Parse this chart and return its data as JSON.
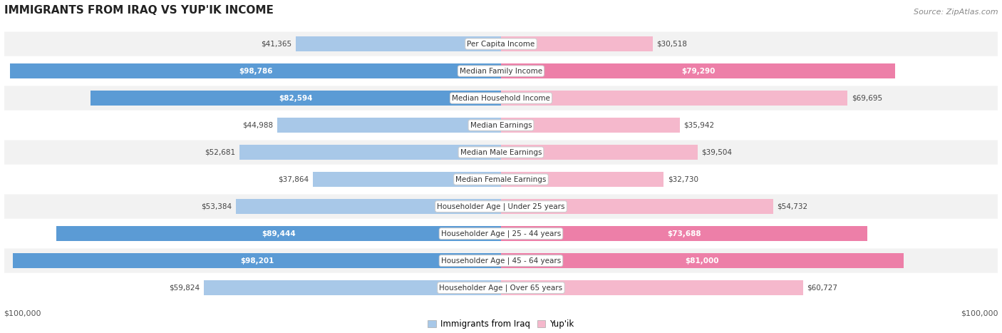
{
  "title": "IMMIGRANTS FROM IRAQ VS YUP'IK INCOME",
  "source": "Source: ZipAtlas.com",
  "categories": [
    "Per Capita Income",
    "Median Family Income",
    "Median Household Income",
    "Median Earnings",
    "Median Male Earnings",
    "Median Female Earnings",
    "Householder Age | Under 25 years",
    "Householder Age | 25 - 44 years",
    "Householder Age | 45 - 64 years",
    "Householder Age | Over 65 years"
  ],
  "iraq_values": [
    41365,
    98786,
    82594,
    44988,
    52681,
    37864,
    53384,
    89444,
    98201,
    59824
  ],
  "yupik_values": [
    30518,
    79290,
    69695,
    35942,
    39504,
    32730,
    54732,
    73688,
    81000,
    60727
  ],
  "max_value": 100000,
  "iraq_color_light": "#a8c8e8",
  "iraq_color_dark": "#5b9bd5",
  "yupik_color_light": "#f5b8cc",
  "yupik_color_dark": "#ed7fa8",
  "iraq_label": "Immigrants from Iraq",
  "yupik_label": "Yup'ik",
  "row_bg_light": "#f2f2f2",
  "row_bg_dark": "#e0e0e8",
  "label_color_inside": "#ffffff",
  "label_color_outside": "#444444",
  "threshold_dark": 70000
}
